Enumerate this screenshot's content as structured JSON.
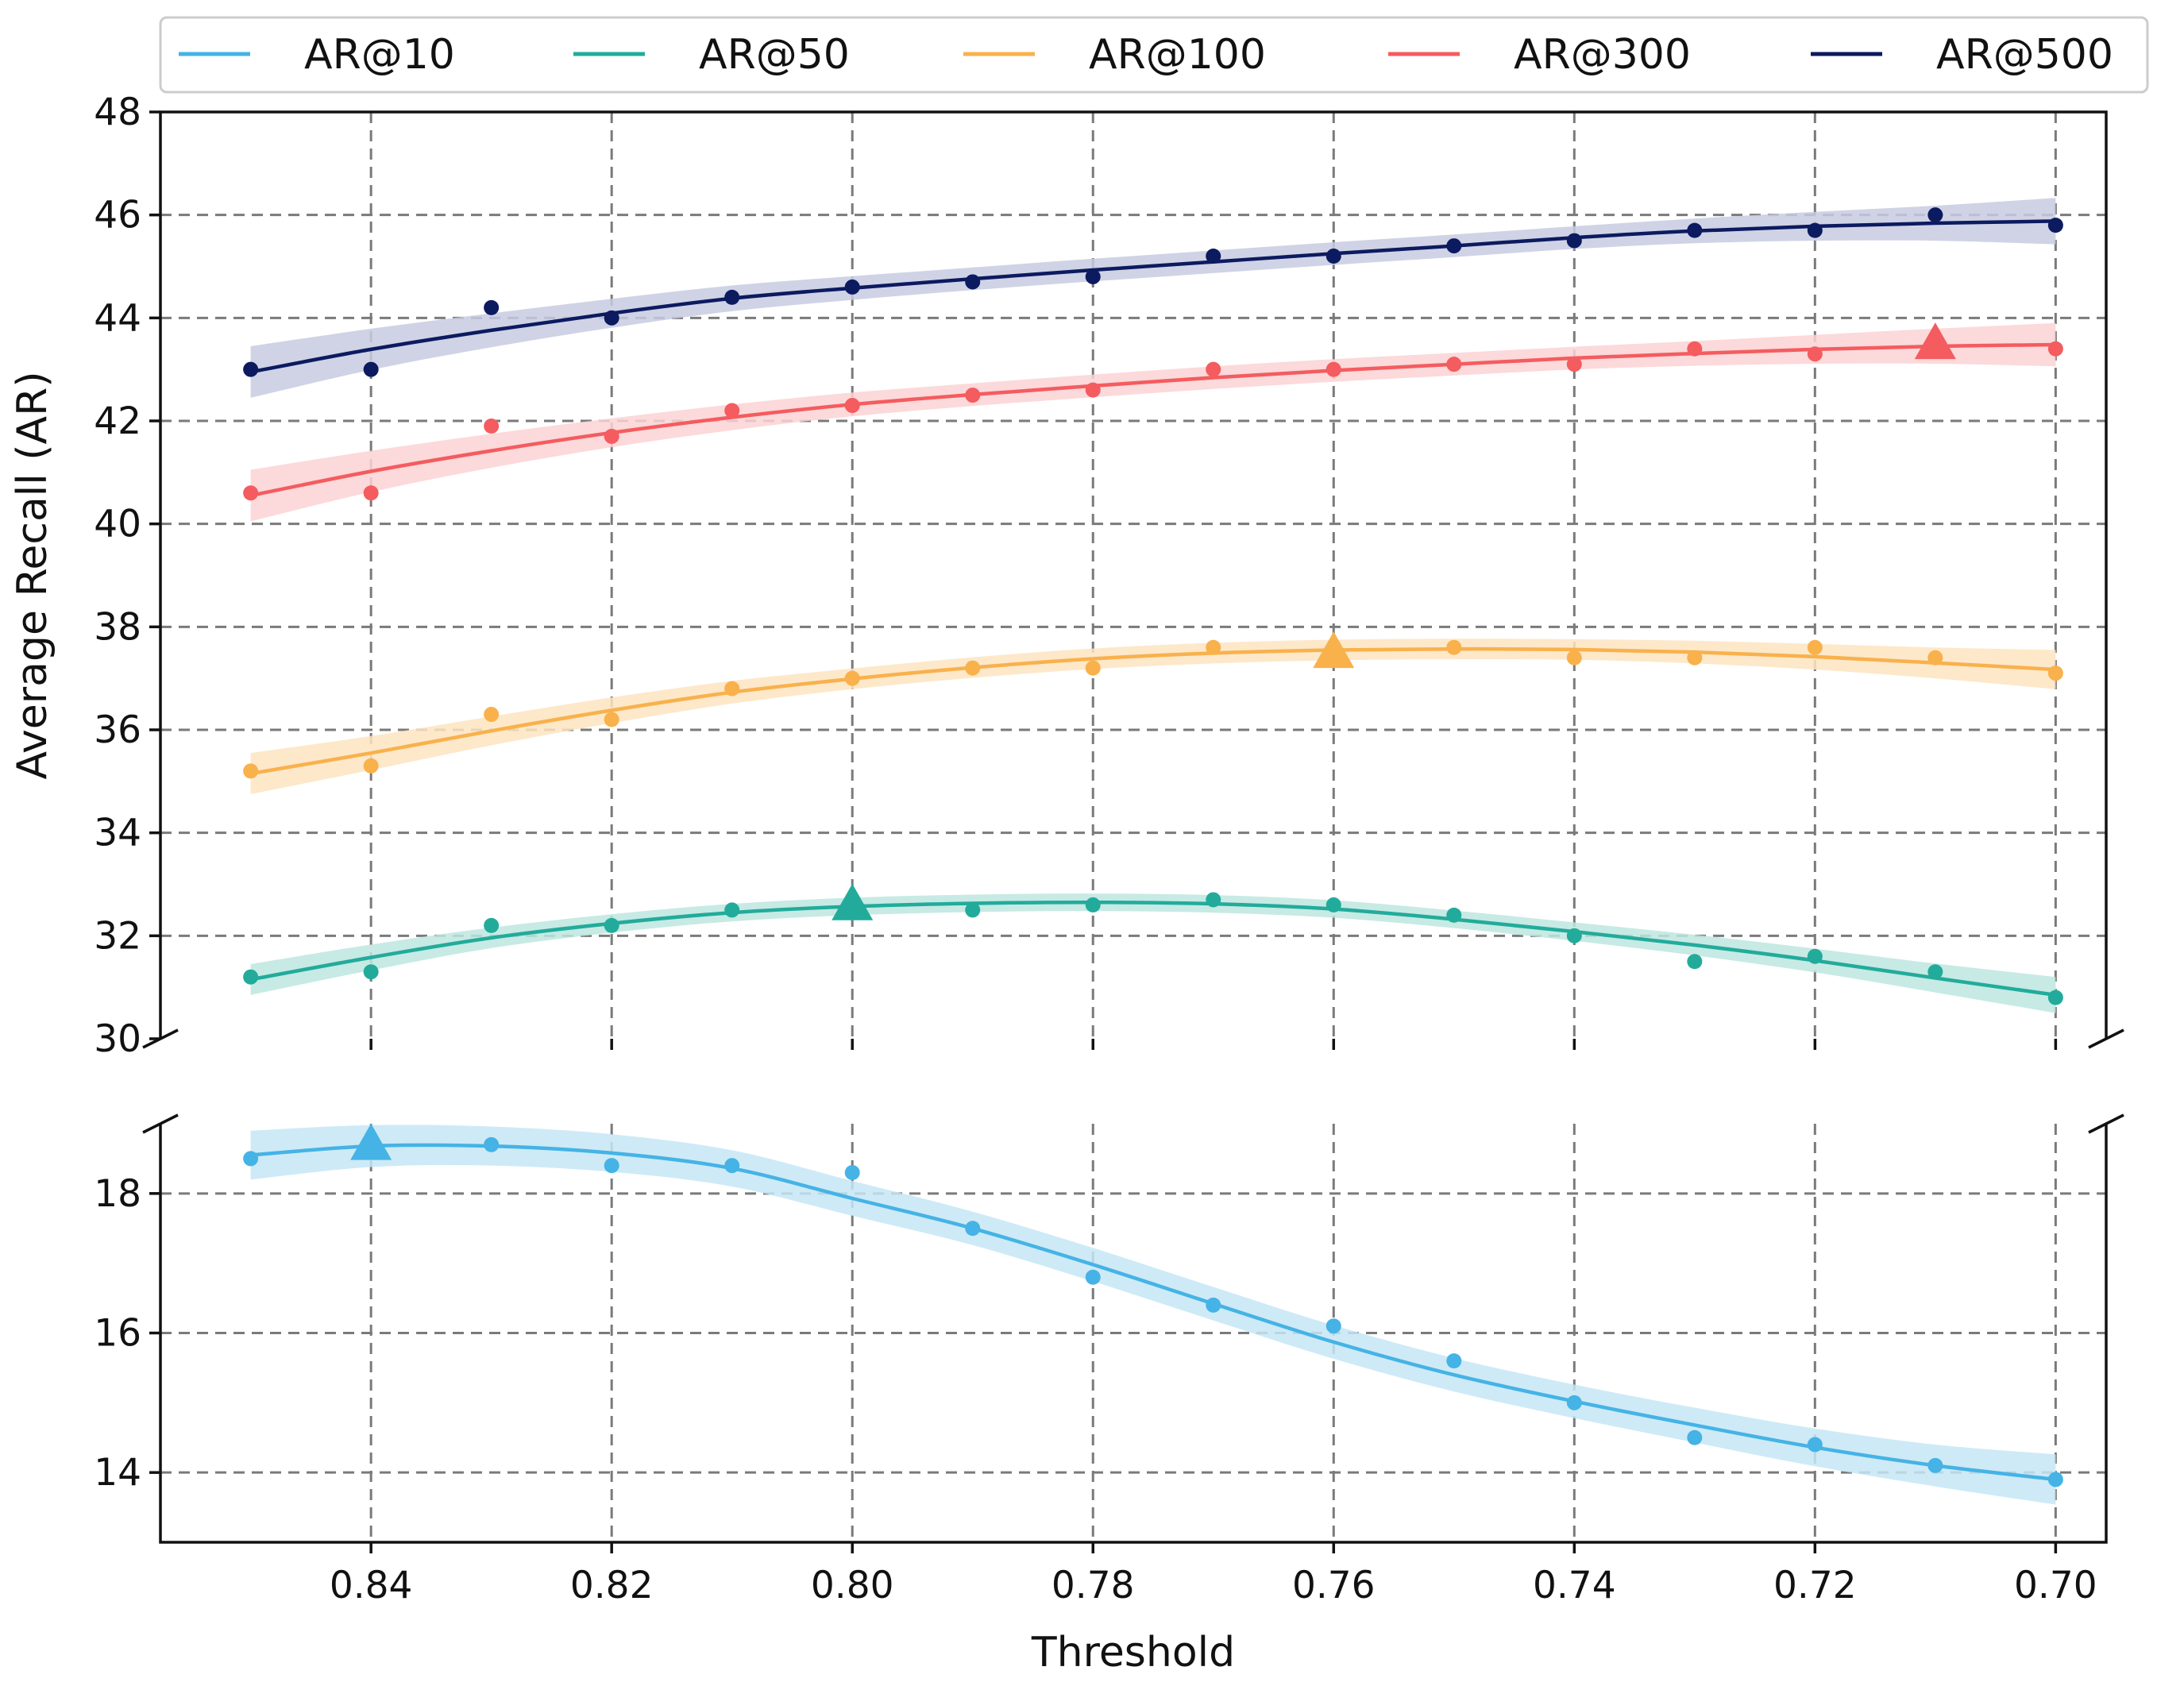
{
  "chart_data": {
    "type": "line",
    "xlabel": "Threshold",
    "ylabel": "Average Recall (AR)",
    "x_ticks": [
      "0.84",
      "0.82",
      "0.80",
      "0.78",
      "0.76",
      "0.74",
      "0.72",
      "0.70"
    ],
    "x_tick_values": [
      0.84,
      0.82,
      0.8,
      0.78,
      0.76,
      0.74,
      0.72,
      0.7
    ],
    "xlim": [
      0.8575,
      0.6958
    ],
    "x_inverted": true,
    "broken_y_axis": true,
    "panels": [
      {
        "name": "upper",
        "ylim": [
          30,
          48
        ],
        "y_ticks": [
          "30",
          "32",
          "34",
          "36",
          "38",
          "40",
          "42",
          "44",
          "46",
          "48"
        ],
        "y_tick_values": [
          30,
          32,
          34,
          36,
          38,
          40,
          42,
          44,
          46,
          48
        ]
      },
      {
        "name": "lower",
        "ylim": [
          13,
          19
        ],
        "y_ticks": [
          "14",
          "16",
          "18"
        ],
        "y_tick_values": [
          14,
          16,
          18
        ]
      }
    ],
    "grid": true,
    "legend": {
      "placement": "top",
      "columns": 5
    },
    "x": [
      0.85,
      0.84,
      0.83,
      0.82,
      0.81,
      0.8,
      0.79,
      0.78,
      0.77,
      0.76,
      0.75,
      0.74,
      0.73,
      0.72,
      0.71,
      0.7
    ],
    "series": [
      {
        "name": "AR@10",
        "color": "#45b3e5",
        "band_color": "#c5e6f6",
        "panel": "lower",
        "points": [
          18.5,
          18.7,
          18.7,
          18.4,
          18.4,
          18.3,
          17.5,
          16.8,
          16.4,
          16.1,
          15.6,
          15.0,
          14.5,
          14.4,
          14.1,
          13.9
        ],
        "fit": [
          18.55,
          18.68,
          18.68,
          18.58,
          18.36,
          17.93,
          17.5,
          16.98,
          16.42,
          15.87,
          15.4,
          15.02,
          14.68,
          14.36,
          14.1,
          13.9
        ],
        "band_halfwidth": [
          0.35,
          0.3,
          0.28,
          0.27,
          0.26,
          0.25,
          0.24,
          0.24,
          0.24,
          0.24,
          0.24,
          0.24,
          0.25,
          0.27,
          0.3,
          0.36
        ],
        "best": {
          "x": 0.84,
          "y": 18.7
        }
      },
      {
        "name": "AR@50",
        "color": "#22ab9b",
        "band_color": "#bde6df",
        "panel": "upper",
        "points": [
          31.2,
          31.3,
          32.2,
          32.2,
          32.5,
          32.6,
          32.5,
          32.6,
          32.7,
          32.6,
          32.4,
          32.0,
          31.5,
          31.6,
          31.3,
          30.8
        ],
        "fit": [
          31.15,
          31.58,
          31.96,
          32.24,
          32.45,
          32.57,
          32.63,
          32.65,
          32.62,
          32.52,
          32.32,
          32.08,
          31.82,
          31.52,
          31.18,
          30.85
        ],
        "band_halfwidth": [
          0.3,
          0.25,
          0.2,
          0.18,
          0.17,
          0.17,
          0.17,
          0.17,
          0.17,
          0.17,
          0.17,
          0.18,
          0.2,
          0.23,
          0.28,
          0.35
        ],
        "best": {
          "x": 0.8,
          "y": 32.6
        }
      },
      {
        "name": "AR@100",
        "color": "#f9b14c",
        "band_color": "#fde4c1",
        "panel": "upper",
        "points": [
          35.2,
          35.3,
          36.3,
          36.2,
          36.8,
          37.0,
          37.2,
          37.2,
          37.6,
          37.5,
          37.6,
          37.4,
          37.4,
          37.6,
          37.4,
          37.1
        ],
        "fit": [
          35.15,
          35.55,
          35.98,
          36.38,
          36.73,
          36.99,
          37.21,
          37.38,
          37.49,
          37.55,
          37.57,
          37.56,
          37.51,
          37.42,
          37.3,
          37.17
        ],
        "band_halfwidth": [
          0.4,
          0.33,
          0.28,
          0.25,
          0.22,
          0.2,
          0.2,
          0.2,
          0.2,
          0.2,
          0.2,
          0.2,
          0.22,
          0.25,
          0.3,
          0.38
        ],
        "best": {
          "x": 0.76,
          "y": 37.5
        }
      },
      {
        "name": "AR@300",
        "color": "#f45c5f",
        "band_color": "#fcd2d4",
        "panel": "upper",
        "points": [
          40.6,
          40.6,
          41.9,
          41.7,
          42.2,
          42.3,
          42.5,
          42.6,
          43.0,
          43.0,
          43.1,
          43.1,
          43.4,
          43.3,
          43.5,
          43.4
        ],
        "fit": [
          40.55,
          41.02,
          41.42,
          41.77,
          42.07,
          42.32,
          42.51,
          42.68,
          42.84,
          42.98,
          43.1,
          43.22,
          43.31,
          43.39,
          43.45,
          43.48
        ],
        "band_halfwidth": [
          0.5,
          0.4,
          0.33,
          0.28,
          0.25,
          0.23,
          0.22,
          0.22,
          0.22,
          0.22,
          0.22,
          0.22,
          0.24,
          0.28,
          0.34,
          0.42
        ],
        "best": {
          "x": 0.71,
          "y": 43.5
        }
      },
      {
        "name": "AR@500",
        "color": "#0c1a60",
        "band_color": "#c7cbe0",
        "panel": "upper",
        "points": [
          43.0,
          43.0,
          44.2,
          44.0,
          44.4,
          44.6,
          44.7,
          44.8,
          45.2,
          45.2,
          45.4,
          45.5,
          45.7,
          45.7,
          46.0,
          45.8
        ],
        "fit": [
          42.95,
          43.39,
          43.76,
          44.09,
          44.38,
          44.58,
          44.76,
          44.93,
          45.09,
          45.25,
          45.4,
          45.56,
          45.69,
          45.78,
          45.84,
          45.88
        ],
        "band_halfwidth": [
          0.5,
          0.4,
          0.33,
          0.28,
          0.25,
          0.23,
          0.22,
          0.22,
          0.22,
          0.22,
          0.22,
          0.22,
          0.24,
          0.28,
          0.34,
          0.45
        ],
        "best": null
      }
    ]
  }
}
